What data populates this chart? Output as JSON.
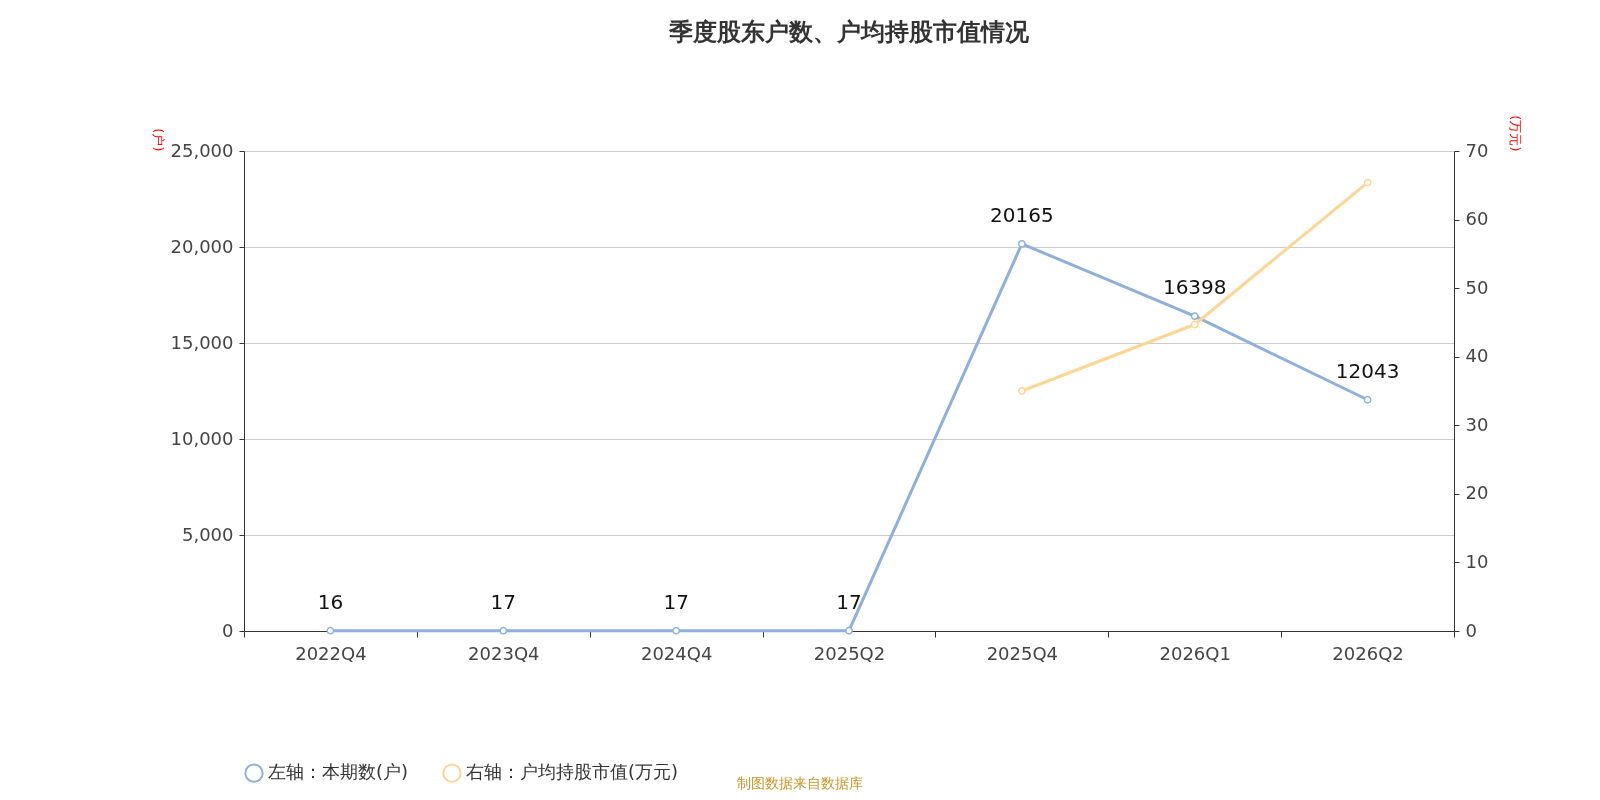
{
  "chart_data": {
    "type": "line",
    "title": "季度股东户数、户均持股市值情况",
    "ylabel": "(户)",
    "y2label": "(万元)",
    "categories": [
      "2022Q4",
      "2023Q4",
      "2024Q4",
      "2025Q2",
      "2025Q4",
      "2026Q1",
      "2026Q2"
    ],
    "series": [
      {
        "name": "左轴：本期数(户)",
        "color": "#8eb0dc",
        "values": [
          16,
          17,
          17,
          17,
          20165,
          16398,
          12043
        ],
        "value_labels": [
          "16",
          "17",
          "17",
          "17",
          "20165",
          "16398",
          "12043"
        ]
      },
      {
        "name": "右轴：户均持股市值(万元)",
        "color": "#fdd696",
        "axis": "y2",
        "values": [
          null,
          null,
          null,
          null,
          35.0,
          44.7,
          65.4
        ]
      }
    ],
    "ylim": [
      0,
      25000
    ],
    "yticks": [
      0,
      {
        "value": 5000,
        "label": "5,000"
      },
      {
        "value": 10000,
        "label": "10,000"
      },
      {
        "value": 15000,
        "label": "15,000"
      },
      {
        "value": 20000,
        "label": "20,000"
      },
      {
        "value": 25000,
        "label": "25,000"
      }
    ],
    "y2lim": [
      0,
      70
    ],
    "y2ticks": [
      0,
      10,
      20,
      30,
      40,
      50,
      60,
      70
    ],
    "grid": "y",
    "legend": "bottom",
    "marker": "circle",
    "line_style": "solid",
    "annotations": [
      "制图数据来自数据库"
    ]
  }
}
